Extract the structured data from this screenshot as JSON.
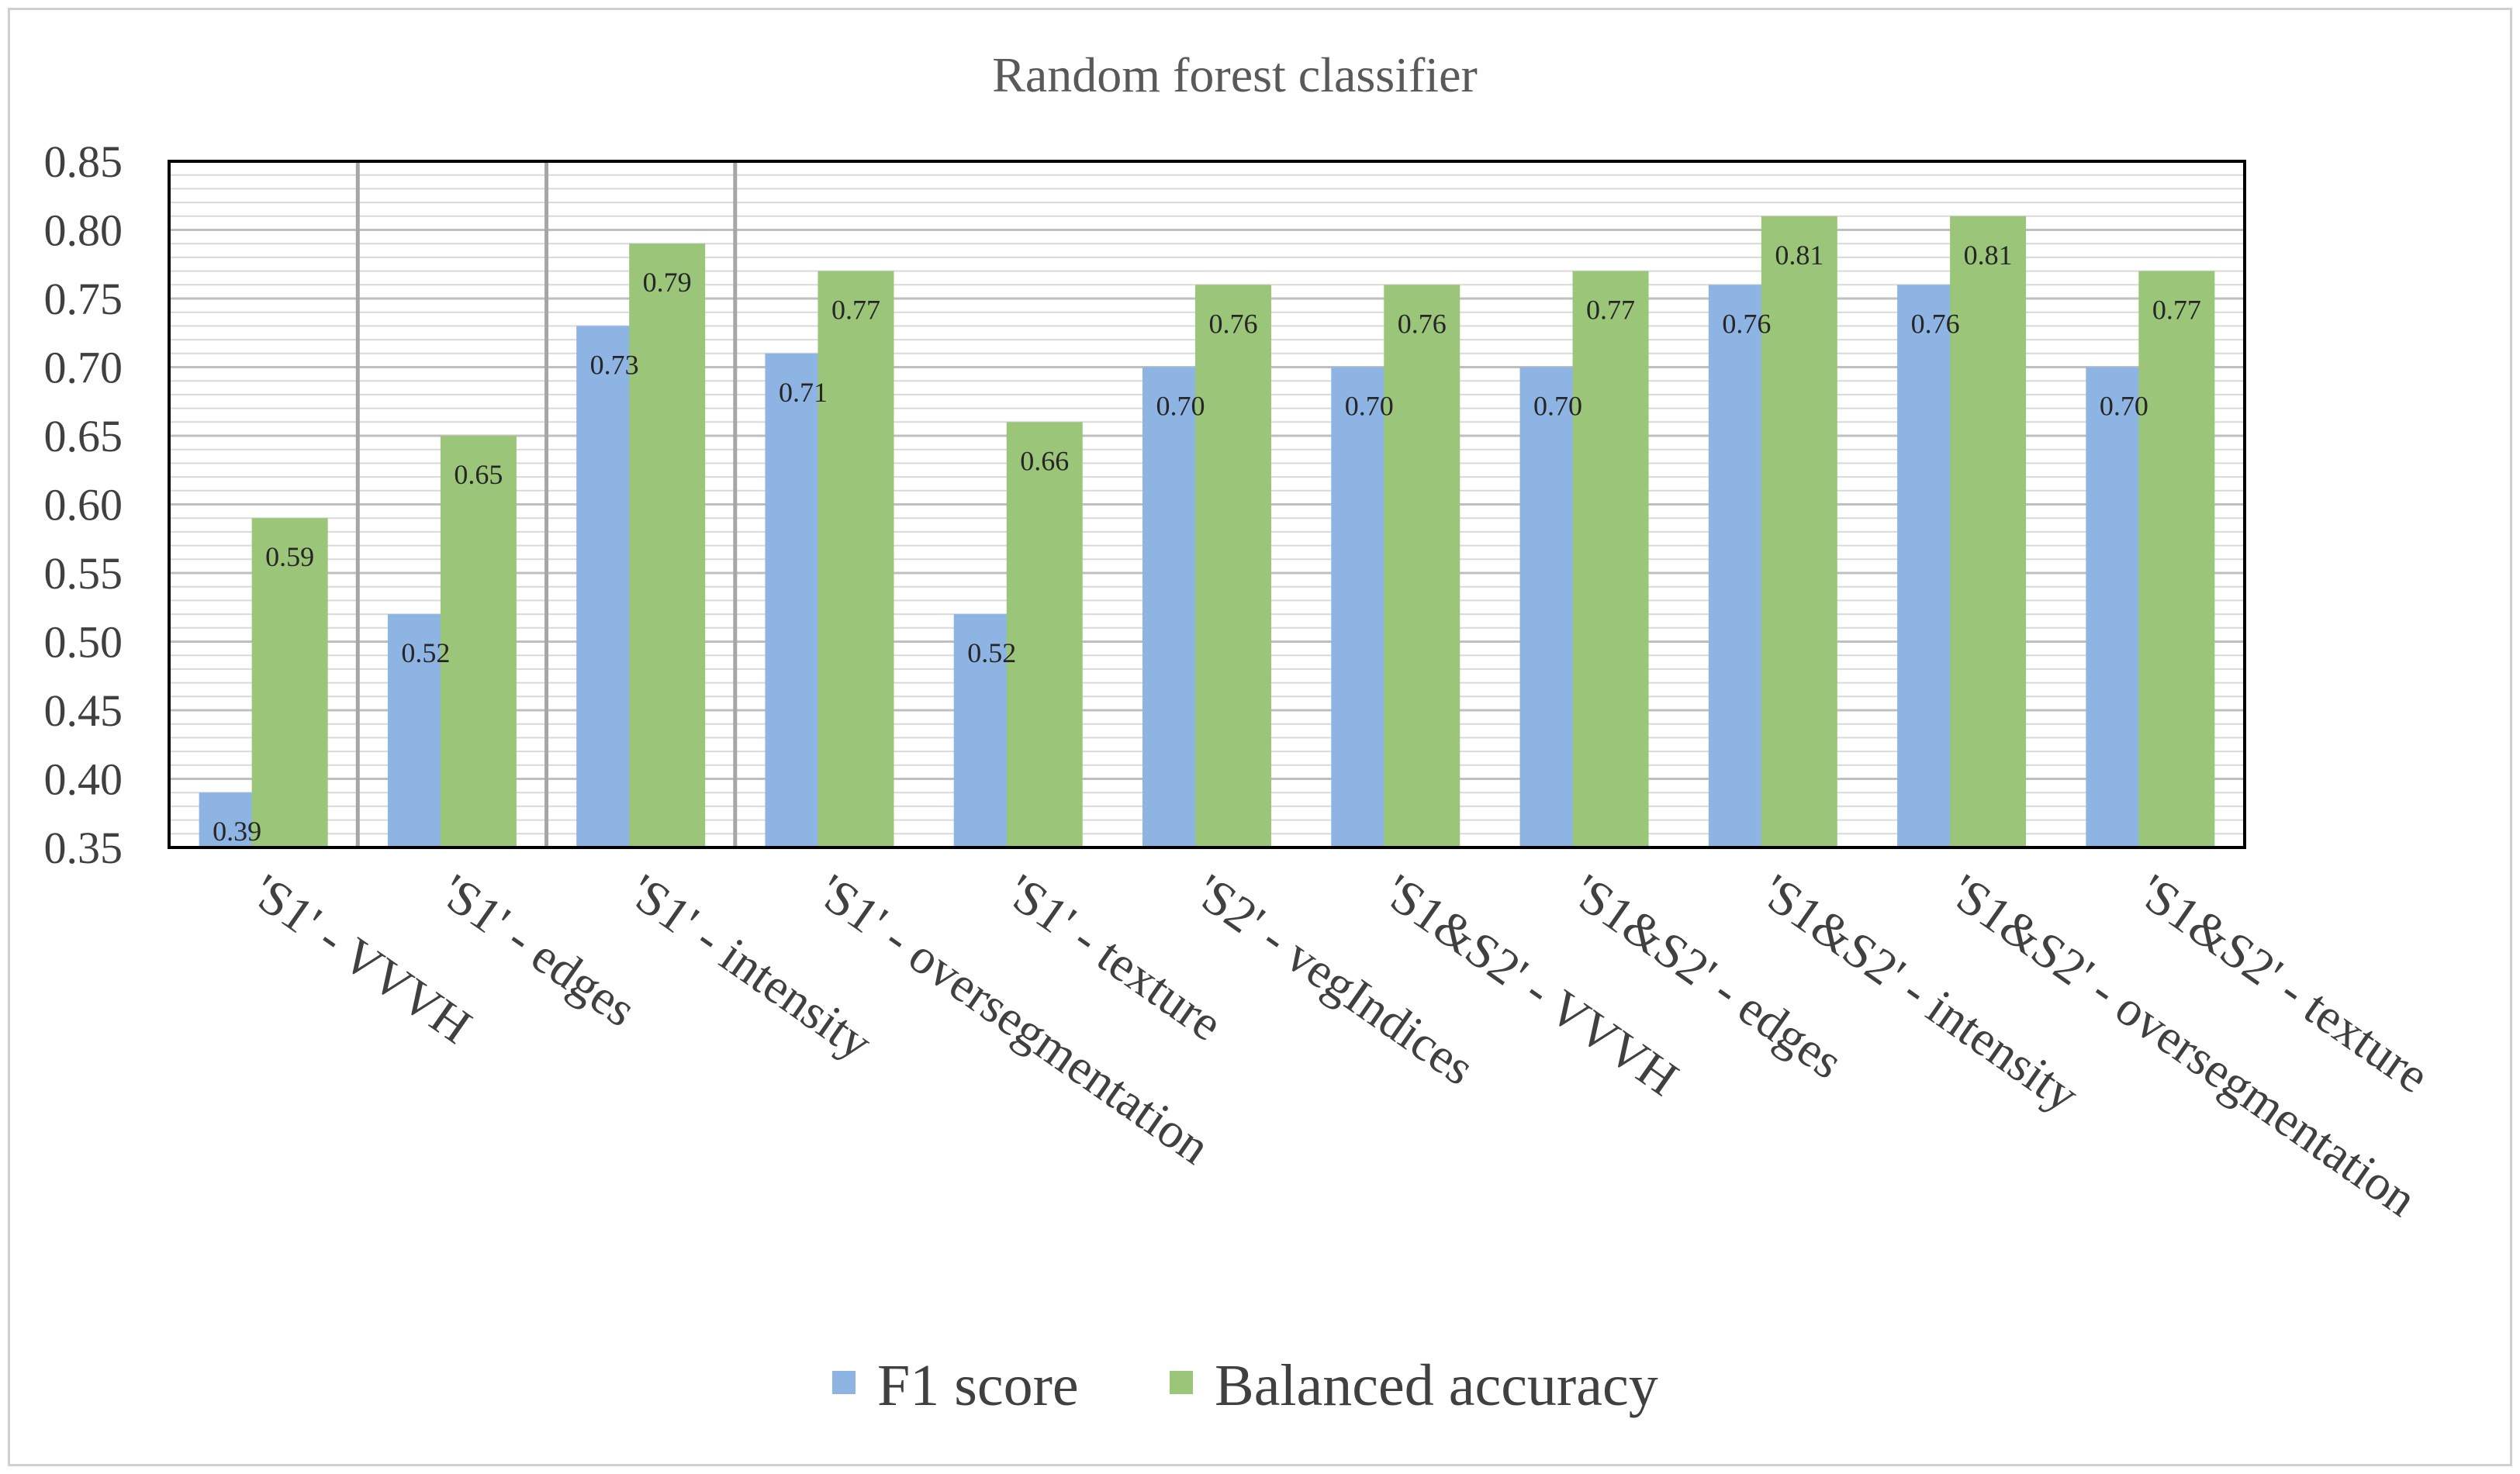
{
  "chart_data": {
    "type": "bar",
    "title": "Random forest classifier",
    "xlabel": "",
    "ylabel": "",
    "ylim": [
      0.35,
      0.85
    ],
    "yticks": [
      "0.35",
      "0.40",
      "0.45",
      "0.50",
      "0.55",
      "0.60",
      "0.65",
      "0.70",
      "0.75",
      "0.80",
      "0.85"
    ],
    "grid": true,
    "legend_position": "bottom",
    "categories": [
      "'S1' - VVVH",
      "'S1' - edges",
      "'S1' - intensity",
      "'S1' - oversegmentation",
      "'S1' - texture",
      "'S2' - vegIndices",
      "'S1&S2' - VVVH",
      "'S1&S2' - edges",
      "'S1&S2' - intensity",
      "'S1&S2' - oversegmentation",
      "'S1&S2' - texture"
    ],
    "series": [
      {
        "name": "F1 score",
        "color": "#8db4e2",
        "values": [
          0.39,
          0.52,
          0.73,
          0.71,
          0.52,
          0.7,
          0.7,
          0.7,
          0.76,
          0.76,
          0.7
        ],
        "labels": [
          "0.39",
          "0.52",
          "0.73",
          "0.71",
          "0.52",
          "0.70",
          "0.70",
          "0.70",
          "0.76",
          "0.76",
          "0.70"
        ]
      },
      {
        "name": "Balanced accuracy",
        "color": "#9bc67a",
        "values": [
          0.59,
          0.65,
          0.79,
          0.77,
          0.66,
          0.76,
          0.76,
          0.77,
          0.81,
          0.81,
          0.77
        ],
        "labels": [
          "0.59",
          "0.65",
          "0.79",
          "0.77",
          "0.66",
          "0.76",
          "0.76",
          "0.77",
          "0.81",
          "0.81",
          "0.77"
        ]
      }
    ]
  }
}
